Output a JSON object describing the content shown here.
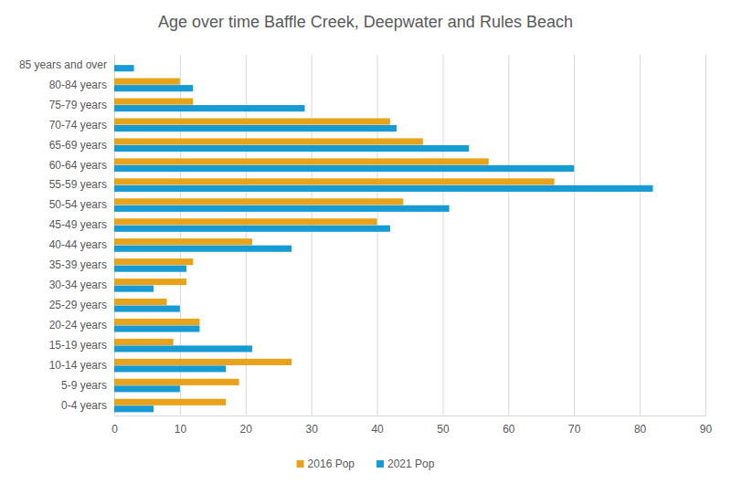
{
  "chart_data": {
    "type": "bar",
    "title": "Age over time Baffle Creek, Deepwater and Rules Beach",
    "orientation": "horizontal",
    "categories": [
      "0-4 years",
      "5-9 years",
      "10-14 years",
      "15-19 years",
      "20-24 years",
      "25-29 years",
      "30-34 years",
      "35-39 years",
      "40-44 years",
      "45-49 years",
      "50-54 years",
      "55-59 years",
      "60-64 years",
      "65-69 years",
      "70-74 years",
      "75-79 years",
      "80-84 years",
      "85 years and over"
    ],
    "series": [
      {
        "name": "2016 Pop",
        "color": "#E8A31A",
        "values": [
          17,
          19,
          27,
          9,
          13,
          8,
          11,
          12,
          21,
          40,
          44,
          67,
          57,
          47,
          42,
          12,
          10,
          0
        ]
      },
      {
        "name": "2021 Pop",
        "color": "#169BD5",
        "values": [
          6,
          10,
          17,
          21,
          13,
          10,
          6,
          11,
          27,
          42,
          51,
          82,
          70,
          54,
          43,
          29,
          12,
          3
        ]
      }
    ],
    "xlim": [
      0,
      90
    ],
    "xticks": [
      0,
      10,
      20,
      30,
      40,
      50,
      60,
      70,
      80,
      90
    ],
    "grid": true,
    "legend": "bottom"
  }
}
